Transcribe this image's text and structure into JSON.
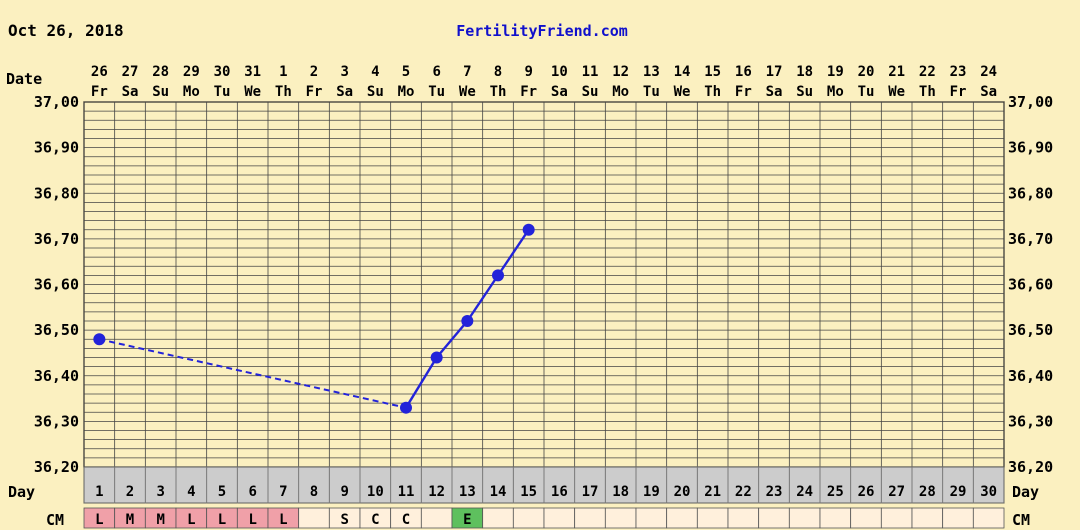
{
  "header": {
    "date": "Oct 26, 2018",
    "site": "FertilityFriend.com"
  },
  "labels": {
    "date_row": "Date",
    "day_row": "Day",
    "cm_row": "CM"
  },
  "colors": {
    "background": "#fbf0c0",
    "plot_bg": "#fbf0c0",
    "grid": "#000000",
    "line": "#2323d9",
    "site_link": "#1010cc",
    "day_row_bg": "#cccccc",
    "cm_menstruation": "#f0a0a8",
    "cm_empty": "#fff0dc",
    "cm_eggwhite": "#5ec05e"
  },
  "chart_data": {
    "type": "line",
    "ylim": [
      36.2,
      37.0
    ],
    "y_ticks": [
      "37,00",
      "36,90",
      "36,80",
      "36,70",
      "36,60",
      "36,50",
      "36,40",
      "36,30",
      "36,20"
    ],
    "grid": true,
    "dates": [
      "26",
      "27",
      "28",
      "29",
      "30",
      "31",
      "1",
      "2",
      "3",
      "4",
      "5",
      "6",
      "7",
      "8",
      "9",
      "10",
      "11",
      "12",
      "13",
      "14",
      "15",
      "16",
      "17",
      "18",
      "19",
      "20",
      "21",
      "22",
      "23",
      "24"
    ],
    "weekdays": [
      "Fr",
      "Sa",
      "Su",
      "Mo",
      "Tu",
      "We",
      "Th",
      "Fr",
      "Sa",
      "Su",
      "Mo",
      "Tu",
      "We",
      "Th",
      "Fr",
      "Sa",
      "Su",
      "Mo",
      "Tu",
      "We",
      "Th",
      "Fr",
      "Sa",
      "Su",
      "Mo",
      "Tu",
      "We",
      "Th",
      "Fr",
      "Sa"
    ],
    "days": [
      "1",
      "2",
      "3",
      "4",
      "5",
      "6",
      "7",
      "8",
      "9",
      "10",
      "11",
      "12",
      "13",
      "14",
      "15",
      "16",
      "17",
      "18",
      "19",
      "20",
      "21",
      "22",
      "23",
      "24",
      "25",
      "26",
      "27",
      "28",
      "29",
      "30"
    ],
    "cm": [
      "L",
      "M",
      "M",
      "L",
      "L",
      "L",
      "L",
      "",
      "S",
      "C",
      "C",
      "",
      "E",
      "",
      "",
      "",
      "",
      "",
      "",
      "",
      "",
      "",
      "",
      "",
      "",
      "",
      "",
      "",
      "",
      ""
    ],
    "temperatures": [
      {
        "day": 1,
        "value": 36.48
      },
      {
        "day": 11,
        "value": 36.33
      },
      {
        "day": 12,
        "value": 36.44
      },
      {
        "day": 13,
        "value": 36.52
      },
      {
        "day": 14,
        "value": 36.62
      },
      {
        "day": 15,
        "value": 36.72
      }
    ],
    "dashed_segments": [
      [
        1,
        11
      ]
    ],
    "solid_from_day": 11
  }
}
